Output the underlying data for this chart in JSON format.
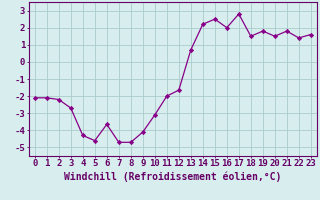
{
  "x": [
    0,
    1,
    2,
    3,
    4,
    5,
    6,
    7,
    8,
    9,
    10,
    11,
    12,
    13,
    14,
    15,
    16,
    17,
    18,
    19,
    20,
    21,
    22,
    23
  ],
  "y": [
    -2.1,
    -2.1,
    -2.2,
    -2.7,
    -4.3,
    -4.6,
    -3.65,
    -4.7,
    -4.7,
    -4.1,
    -3.1,
    -2.0,
    -1.65,
    0.7,
    2.2,
    2.5,
    2.0,
    2.8,
    1.5,
    1.8,
    1.5,
    1.8,
    1.4,
    1.6
  ],
  "line_color": "#880088",
  "marker": "D",
  "marker_size": 2.2,
  "bg_color": "#d8eeee",
  "grid_color": "#aacccc",
  "axis_color": "#660066",
  "xlabel": "Windchill (Refroidissement éolien,°C)",
  "xlim": [
    -0.5,
    23.5
  ],
  "ylim": [
    -5.5,
    3.5
  ],
  "yticks": [
    -5,
    -4,
    -3,
    -2,
    -1,
    0,
    1,
    2,
    3
  ],
  "xtick_labels": [
    "0",
    "1",
    "2",
    "3",
    "4",
    "5",
    "6",
    "7",
    "8",
    "9",
    "10",
    "11",
    "12",
    "13",
    "14",
    "15",
    "16",
    "17",
    "18",
    "19",
    "20",
    "21",
    "22",
    "23"
  ],
  "label_fontsize": 7,
  "tick_fontsize": 6.5
}
